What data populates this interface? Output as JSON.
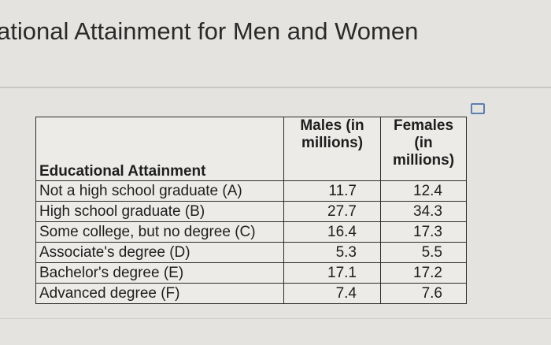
{
  "header": {
    "title": "ational Attainment for Men and Women"
  },
  "table": {
    "columns": [
      "Educational Attainment",
      "Males (in millions)",
      "Females (in millions)"
    ],
    "rows": [
      [
        "Not a high school graduate (A)",
        11.7,
        12.4
      ],
      [
        "High school graduate (B)",
        27.7,
        34.3
      ],
      [
        "Some college, but no degree (C)",
        16.4,
        17.3
      ],
      [
        "Associate's degree (D)",
        5.3,
        5.5
      ],
      [
        "Bachelor's degree (E)",
        17.1,
        17.2
      ],
      [
        "Advanced degree (F)",
        7.4,
        7.6
      ]
    ]
  }
}
